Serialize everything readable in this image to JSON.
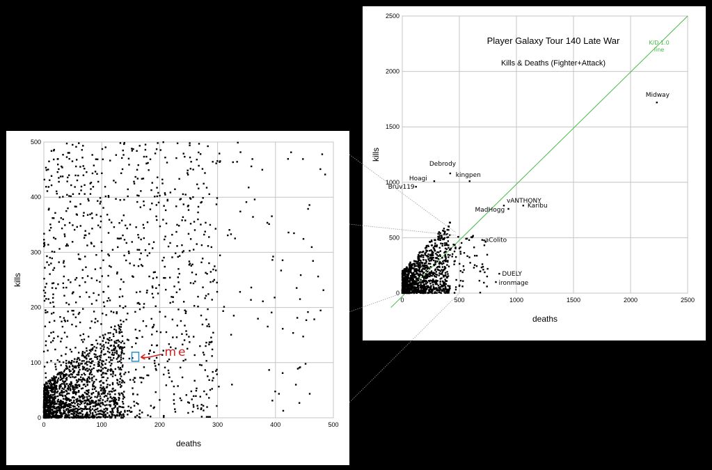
{
  "chart_data": [
    {
      "id": "zoomed",
      "type": "scatter",
      "xlabel": "deaths",
      "ylabel": "kills",
      "xlim": [
        0,
        500
      ],
      "ylim": [
        0,
        500
      ],
      "xticks": [
        0,
        100,
        200,
        300,
        400,
        500
      ],
      "yticks": [
        0,
        100,
        200,
        300,
        400,
        500
      ],
      "grid": true,
      "annotation": {
        "text": "me",
        "x": 158,
        "y": 110,
        "color": "#cc2222",
        "box_color": "#2a8fd0"
      }
    },
    {
      "id": "full",
      "type": "scatter",
      "title": "Player Galaxy Tour 140 Late War",
      "subtitle": "Kills & Deaths (Fighter+Attack)",
      "xlabel": "deaths",
      "ylabel": "kills",
      "xlim": [
        0,
        2500
      ],
      "ylim": [
        0,
        2500
      ],
      "xticks": [
        0,
        500,
        1000,
        1500,
        2000,
        2500
      ],
      "yticks": [
        0,
        500,
        1000,
        1500,
        2000,
        2500
      ],
      "grid": true,
      "kd_line": {
        "label_line1": "K/D 1.0",
        "label_line2": "line",
        "color": "#44bb44"
      },
      "labeled_points": [
        {
          "name": "Midway",
          "x": 2230,
          "y": 1720,
          "color": "#aa2222"
        },
        {
          "name": "Debrody",
          "x": 420,
          "y": 1080,
          "color": "#000000"
        },
        {
          "name": "Hoagi",
          "x": 280,
          "y": 1010,
          "color": "#000000"
        },
        {
          "name": "kingpen",
          "x": 590,
          "y": 1010,
          "color": "#000000"
        },
        {
          "name": "Bruv119",
          "x": 120,
          "y": 960,
          "color": "#000000"
        },
        {
          "name": "vANTHONY",
          "x": 890,
          "y": 790,
          "color": "#000000"
        },
        {
          "name": "Karibu",
          "x": 1060,
          "y": 790,
          "color": "#000000"
        },
        {
          "name": "MadHogg",
          "x": 930,
          "y": 760,
          "color": "#000000"
        },
        {
          "name": "aColito",
          "x": 700,
          "y": 480,
          "color": "#000000"
        },
        {
          "name": "DUELY",
          "x": 850,
          "y": 175,
          "color": "#000000"
        },
        {
          "name": "ironmage",
          "x": 820,
          "y": 100,
          "color": "#000000"
        }
      ]
    }
  ]
}
